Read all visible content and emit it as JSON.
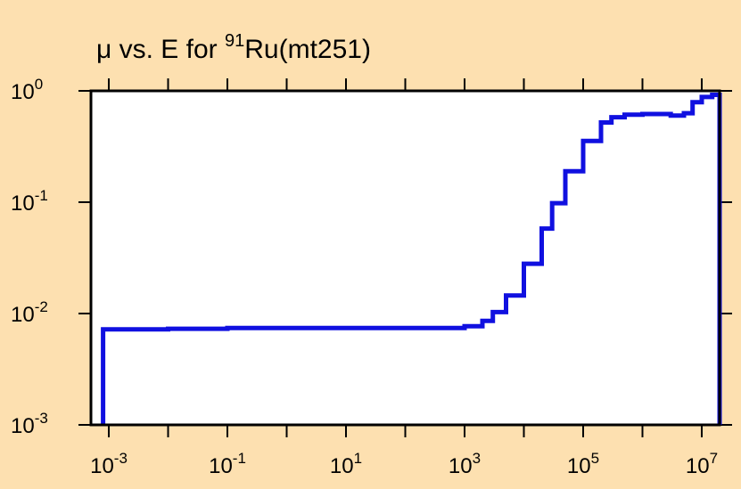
{
  "chart_data": {
    "type": "line",
    "title": {
      "prefix": "μ vs. E for ",
      "superscript": "91",
      "suffix": "Ru(mt251)"
    },
    "xlabel": "",
    "ylabel": "",
    "x_scale": "log",
    "y_scale": "log",
    "xlim": [
      0.0005,
      20000000
    ],
    "ylim": [
      0.001,
      1
    ],
    "x_ticks": [
      {
        "base": "10",
        "exp": "-3"
      },
      {
        "base": "10",
        "exp": "-1"
      },
      {
        "base": "10",
        "exp": "1"
      },
      {
        "base": "10",
        "exp": "3"
      },
      {
        "base": "10",
        "exp": "5"
      },
      {
        "base": "10",
        "exp": "7"
      }
    ],
    "y_ticks": [
      {
        "base": "10",
        "exp": "0"
      },
      {
        "base": "10",
        "exp": "-1"
      },
      {
        "base": "10",
        "exp": "-2"
      },
      {
        "base": "10",
        "exp": "-3"
      }
    ],
    "grid": false,
    "colors": {
      "background": "#fde0b0",
      "plot_area": "#ffffff",
      "frame": "#000000",
      "series": "#1010e0"
    },
    "series": [
      {
        "x": [
          0.0008,
          0.0008,
          0.01,
          0.1,
          1,
          10,
          100,
          300,
          1000,
          2000,
          3000,
          5000,
          10000,
          20000,
          30000,
          50000,
          100000,
          200000,
          300000,
          500000,
          1000000,
          2000000,
          3000000,
          4000000,
          5000000,
          7000000,
          10000000,
          15000000,
          20000000,
          20000000
        ],
        "y": [
          0.001,
          0.0072,
          0.0073,
          0.0074,
          0.0074,
          0.0074,
          0.0074,
          0.0074,
          0.0077,
          0.0086,
          0.0103,
          0.0145,
          0.028,
          0.058,
          0.098,
          0.19,
          0.355,
          0.52,
          0.58,
          0.61,
          0.62,
          0.62,
          0.6,
          0.6,
          0.63,
          0.79,
          0.88,
          0.92,
          0.92,
          0.001
        ]
      }
    ]
  }
}
